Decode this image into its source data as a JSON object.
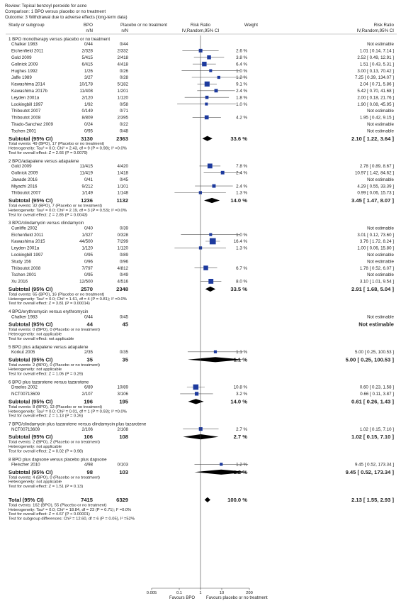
{
  "header": {
    "review": "Review: Topical benzoyl peroxide for acne",
    "comparison": "Comparison: 1 BPO versus placebo or no treatment",
    "outcome": "Outcome: 3 Withdrawal due to adverse effects (long-term data)"
  },
  "columns": {
    "study": "Study or subgroup",
    "bpo": "BPO",
    "bpo_sub": "n/N",
    "placebo": "Placebo or no treatment",
    "placebo_sub": "n/N",
    "rr": "Risk Ratio",
    "rr_sub": "IV,Random,95% CI",
    "weight": "Weight",
    "rr2": "Risk Ratio",
    "rr2_sub": "IV,Random,95% CI"
  },
  "colors": {
    "square": "#1d3a9e",
    "diamond": "#000000",
    "line": "#555555",
    "text": "#222222"
  },
  "chart_data": {
    "type": "forest",
    "axis": {
      "scale": "log",
      "ticks": [
        "0.005",
        "0.1",
        "1",
        "10",
        "200"
      ],
      "tick_values": [
        0.005,
        0.1,
        1,
        10,
        200
      ],
      "left_label": "Favours BPO",
      "right_label": "Favours placebo or no treatment"
    },
    "groups": [
      {
        "title": "1 BPO monotherapy versus placebo or no treatment",
        "studies": [
          {
            "name": "Chalker 1983",
            "bpo": "0/44",
            "ctl": "0/44",
            "weight": "",
            "ci": "Not estimable",
            "rr": null
          },
          {
            "name": "Eichenfield 2011",
            "bpo": "2/328",
            "ctl": "2/332",
            "weight": "2.6 %",
            "ci": "1.01 [ 0.14, 7.14 ]",
            "rr": 1.01,
            "lo": 0.14,
            "hi": 7.14,
            "w": 2.6
          },
          {
            "name": "Gold 2009",
            "bpo": "5/415",
            "ctl": "2/418",
            "weight": "3.8 %",
            "ci": "2.52 [ 0.49, 12.91 ]",
            "rr": 2.52,
            "lo": 0.49,
            "hi": 12.91,
            "w": 3.8
          },
          {
            "name": "Gollnick 2009",
            "bpo": "6/415",
            "ctl": "4/418",
            "weight": "6.4 %",
            "ci": "1.51 [ 0.43, 5.31 ]",
            "rr": 1.51,
            "lo": 0.43,
            "hi": 5.31,
            "w": 6.4
          },
          {
            "name": "Hughes 1992",
            "bpo": "1/26",
            "ctl": "0/26",
            "weight": "1.0 %",
            "ci": "3.00 [ 0.13, 70.42 ]",
            "rr": 3.0,
            "lo": 0.13,
            "hi": 70.42,
            "w": 1.0
          },
          {
            "name": "Jaffe 1989",
            "bpo": "3/27",
            "ctl": "0/28",
            "weight": "1.2 %",
            "ci": "7.25 [ 0.39, 134.07 ]",
            "rr": 7.25,
            "lo": 0.39,
            "hi": 134.07,
            "w": 1.2
          },
          {
            "name": "Kawashima 2014",
            "bpo": "10/178",
            "ctl": "5/182",
            "weight": "9.1 %",
            "ci": "2.04 [ 0.71, 5.86 ]",
            "rr": 2.04,
            "lo": 0.71,
            "hi": 5.86,
            "w": 9.1
          },
          {
            "name": "Kawashima 2017b",
            "bpo": "11/408",
            "ctl": "1/201",
            "weight": "2.4 %",
            "ci": "5.42 [ 0.70, 41.68 ]",
            "rr": 5.42,
            "lo": 0.7,
            "hi": 41.68,
            "w": 2.4
          },
          {
            "name": "Leyden 2001a",
            "bpo": "2/120",
            "ctl": "1/120",
            "weight": "1.8 %",
            "ci": "2.00 [ 0.18, 21.76 ]",
            "rr": 2.0,
            "lo": 0.18,
            "hi": 21.76,
            "w": 1.8
          },
          {
            "name": "Lookingbill 1997",
            "bpo": "1/92",
            "ctl": "0/58",
            "weight": "1.0 %",
            "ci": "1.90 [ 0.08, 45.95 ]",
            "rr": 1.9,
            "lo": 0.08,
            "hi": 45.95,
            "w": 1.0
          },
          {
            "name": "Thiboutot 2007",
            "bpo": "0/149",
            "ctl": "0/71",
            "weight": "",
            "ci": "Not estimable",
            "rr": null
          },
          {
            "name": "Thiboutot 2008",
            "bpo": "8/809",
            "ctl": "2/395",
            "weight": "4.2 %",
            "ci": "1.95 [ 0.42, 9.15 ]",
            "rr": 1.95,
            "lo": 0.42,
            "hi": 9.15,
            "w": 4.2
          },
          {
            "name": "Tirado-Sanchez 2009",
            "bpo": "0/24",
            "ctl": "0/22",
            "weight": "",
            "ci": "Not estimable",
            "rr": null
          },
          {
            "name": "Tschen 2001",
            "bpo": "0/95",
            "ctl": "0/48",
            "weight": "",
            "ci": "Not estimable",
            "rr": null
          }
        ],
        "subtotal": {
          "label": "Subtotal (95% CI)",
          "bpo": "3130",
          "ctl": "2363",
          "weight": "33.6 %",
          "ci": "2.10 [ 1.22, 3.64 ]",
          "rr": 2.1,
          "lo": 1.22,
          "hi": 3.64
        },
        "notes": [
          "Total events: 49 (BPO), 17 (Placebo or no treatment)",
          "Heterogeneity: Tau² = 0.0; Chi² = 2.43, df = 9 (P = 0.98); I² =0.0%",
          "Test for overall effect: Z = 2.66 (P = 0.0079)"
        ]
      },
      {
        "title": "2 BPO/adapalene versus adapalene",
        "studies": [
          {
            "name": "Gold 2009",
            "bpo": "11/415",
            "ctl": "4/420",
            "weight": "7.8 %",
            "ci": "2.78 [ 0.89, 8.67 ]",
            "rr": 2.78,
            "lo": 0.89,
            "hi": 8.67,
            "w": 7.8
          },
          {
            "name": "Gollnick 2009",
            "bpo": "11/419",
            "ctl": "1/418",
            "weight": "2.4 %",
            "ci": "10.97 [ 1.42, 84.62 ]",
            "rr": 10.97,
            "lo": 1.42,
            "hi": 84.62,
            "w": 2.4
          },
          {
            "name": "Jawade 2016",
            "bpo": "0/41",
            "ctl": "0/45",
            "weight": "",
            "ci": "Not estimable",
            "rr": null
          },
          {
            "name": "Miyachi 2016",
            "bpo": "9/212",
            "ctl": "1/101",
            "weight": "2.4 %",
            "ci": "4.29 [ 0.55, 33.39 ]",
            "rr": 4.29,
            "lo": 0.55,
            "hi": 33.39,
            "w": 2.4
          },
          {
            "name": "Thiboutot 2007",
            "bpo": "1/149",
            "ctl": "1/148",
            "weight": "1.3 %",
            "ci": "0.99 [ 0.06, 15.73 ]",
            "rr": 0.99,
            "lo": 0.06,
            "hi": 15.73,
            "w": 1.3
          }
        ],
        "subtotal": {
          "label": "Subtotal (95% CI)",
          "bpo": "1236",
          "ctl": "1132",
          "weight": "14.0 %",
          "ci": "3.45 [ 1.47, 8.07 ]",
          "rr": 3.45,
          "lo": 1.47,
          "hi": 8.07
        },
        "notes": [
          "Total events: 32 (BPO), 7 (Placebo or no treatment)",
          "Heterogeneity: Tau² = 0.0; Chi² = 2.19, df = 3 (P = 0.53); I² =0.0%",
          "Test for overall effect: Z = 2.85 (P = 0.0043)"
        ]
      },
      {
        "title": "3 BPO/clindamycin versus clindamycin",
        "studies": [
          {
            "name": "Cunliffe 2002",
            "bpo": "0/40",
            "ctl": "0/39",
            "weight": "",
            "ci": "Not estimable",
            "rr": null
          },
          {
            "name": "Eichenfield 2011",
            "bpo": "1/327",
            "ctl": "0/328",
            "weight": "1.0 %",
            "ci": "3.01 [ 0.12, 73.60 ]",
            "rr": 3.01,
            "lo": 0.12,
            "hi": 73.6,
            "w": 1.0
          },
          {
            "name": "Kawashima 2015",
            "bpo": "44/500",
            "ctl": "7/299",
            "weight": "16.4 %",
            "ci": "3.76 [ 1.72, 8.24 ]",
            "rr": 3.76,
            "lo": 1.72,
            "hi": 8.24,
            "w": 16.4
          },
          {
            "name": "Leyden 2001a",
            "bpo": "1/120",
            "ctl": "1/120",
            "weight": "1.3 %",
            "ci": "1.00 [ 0.06, 15.80 ]",
            "rr": 1.0,
            "lo": 0.06,
            "hi": 15.8,
            "w": 1.3
          },
          {
            "name": "Lookingbill 1997",
            "bpo": "0/95",
            "ctl": "0/89",
            "weight": "",
            "ci": "Not estimable",
            "rr": null
          },
          {
            "name": "Study 156",
            "bpo": "0/96",
            "ctl": "0/96",
            "weight": "",
            "ci": "Not estimable",
            "rr": null
          },
          {
            "name": "Thiboutot 2008",
            "bpo": "7/797",
            "ctl": "4/812",
            "weight": "6.7 %",
            "ci": "1.78 [ 0.52, 6.07 ]",
            "rr": 1.78,
            "lo": 0.52,
            "hi": 6.07,
            "w": 6.7
          },
          {
            "name": "Tschen 2001",
            "bpo": "0/95",
            "ctl": "0/49",
            "weight": "",
            "ci": "Not estimable",
            "rr": null
          },
          {
            "name": "Xu 2016",
            "bpo": "12/500",
            "ctl": "4/516",
            "weight": "8.0 %",
            "ci": "3.10 [ 1.01, 9.54 ]",
            "rr": 3.1,
            "lo": 1.01,
            "hi": 9.54,
            "w": 8.0
          }
        ],
        "subtotal": {
          "label": "Subtotal (95% CI)",
          "bpo": "2570",
          "ctl": "2348",
          "weight": "33.5 %",
          "ci": "2.91 [ 1.68, 5.04 ]",
          "rr": 2.91,
          "lo": 1.68,
          "hi": 5.04
        },
        "notes": [
          "Total events: 65 (BPO), 16 (Placebo or no treatment)",
          "Heterogeneity: Tau² = 0.0; Chi² = 1.61, df = 4 (P = 0.81); I² =0.0%",
          "Test for overall effect: Z = 3.81 (P = 0.00014)"
        ]
      },
      {
        "title": "4 BPO/erythromycin versus erythromycin",
        "studies": [
          {
            "name": "Chalker 1983",
            "bpo": "0/44",
            "ctl": "0/45",
            "weight": "",
            "ci": "Not estimable",
            "rr": null
          }
        ],
        "subtotal": {
          "label": "Subtotal (95% CI)",
          "bpo": "44",
          "ctl": "45",
          "weight": "",
          "ci": "Not estimable",
          "rr": null
        },
        "notes": [
          "Total events: 0 (BPO), 0 (Placebo or no treatment)",
          "Heterogeneity: not applicable",
          "Test for overall effect: not applicable"
        ]
      },
      {
        "title": "5 BPO plus adapalene versus adapalene",
        "studies": [
          {
            "name": "Korkut 2005",
            "bpo": "2/35",
            "ctl": "0/35",
            "weight": "1.1 %",
            "ci": "5.00 [ 0.25, 100.53 ]",
            "rr": 5.0,
            "lo": 0.25,
            "hi": 100.53,
            "w": 1.1
          }
        ],
        "subtotal": {
          "label": "Subtotal (95% CI)",
          "bpo": "35",
          "ctl": "35",
          "weight": "1.1 %",
          "ci": "5.00 [ 0.25, 100.53 ]",
          "rr": 5.0,
          "lo": 0.25,
          "hi": 100.53
        },
        "notes": [
          "Total events: 2 (BPO), 0 (Placebo or no treatment)",
          "Heterogeneity: not applicable",
          "Test for overall effect: Z = 1.05 (P = 0.29)"
        ]
      },
      {
        "title": "6 BPO plus tazarotene versus tazarotene",
        "studies": [
          {
            "name": "Draelos 2002",
            "bpo": "6/89",
            "ctl": "10/89",
            "weight": "10.8 %",
            "ci": "0.60 [ 0.23, 1.58 ]",
            "rr": 0.6,
            "lo": 0.23,
            "hi": 1.58,
            "w": 10.8
          },
          {
            "name": "NCT00713609",
            "bpo": "2/107",
            "ctl": "3/106",
            "weight": "3.2 %",
            "ci": "0.66 [ 0.11, 3.87 ]",
            "rr": 0.66,
            "lo": 0.11,
            "hi": 3.87,
            "w": 3.2
          }
        ],
        "subtotal": {
          "label": "Subtotal (95% CI)",
          "bpo": "196",
          "ctl": "195",
          "weight": "14.0 %",
          "ci": "0.61 [ 0.26, 1.43 ]",
          "rr": 0.61,
          "lo": 0.26,
          "hi": 1.43
        },
        "notes": [
          "Total events: 8 (BPO), 13 (Placebo or no treatment)",
          "Heterogeneity: Tau² = 0.0; Chi² = 0.01, df = 1 (P = 0.93); I² =0.0%",
          "Test for overall effect: Z = 1.13 (P = 0.26)"
        ]
      },
      {
        "title": "7 BPO/clindamycin plus tazarotene versus clindamycin plus tazarotene",
        "studies": [
          {
            "name": "NCT00713609",
            "bpo": "2/106",
            "ctl": "2/108",
            "weight": "2.7 %",
            "ci": "1.02 [ 0.15, 7.10 ]",
            "rr": 1.02,
            "lo": 0.15,
            "hi": 7.1,
            "w": 2.7
          }
        ],
        "subtotal": {
          "label": "Subtotal (95% CI)",
          "bpo": "106",
          "ctl": "108",
          "weight": "2.7 %",
          "ci": "1.02 [ 0.15, 7.10 ]",
          "rr": 1.02,
          "lo": 0.15,
          "hi": 7.1
        },
        "notes": [
          "Total events: 2 (BPO), 2 (Placebo or no treatment)",
          "Heterogeneity: not applicable",
          "Test for overall effect: Z = 0.02 (P = 0.98)"
        ]
      },
      {
        "title": "8 BPO plus dapsone versus placebo plus dapsone",
        "studies": [
          {
            "name": "Fleischer 2010",
            "bpo": "4/98",
            "ctl": "0/103",
            "weight": "1.2 %",
            "ci": "9.45 [ 0.52, 173.34 ]",
            "rr": 9.45,
            "lo": 0.52,
            "hi": 173.34,
            "w": 1.2
          }
        ],
        "subtotal": {
          "label": "Subtotal (95% CI)",
          "bpo": "98",
          "ctl": "103",
          "weight": "1.2 %",
          "ci": "9.45 [ 0.52, 173.34 ]",
          "rr": 9.45,
          "lo": 0.52,
          "hi": 173.34
        },
        "notes": [
          "Total events: 4 (BPO), 0 (Placebo or no treatment)",
          "Heterogeneity: not applicable",
          "Test for overall effect: Z = 1.51 (P = 0.13)"
        ]
      }
    ],
    "total": {
      "label": "Total (95% CI)",
      "bpo": "7415",
      "ctl": "6329",
      "weight": "100.0 %",
      "ci": "2.13 [ 1.55, 2.93 ]",
      "rr": 2.13,
      "lo": 1.55,
      "hi": 2.93
    },
    "total_notes": [
      "Total events: 162 (BPO), 55 (Placebo or no treatment)",
      "Heterogeneity: Tau² = 0.0; Chi² = 18.84, df = 23 (P = 0.71); I² =0.0%",
      "Test for overall effect: Z = 4.67 (P < 0.00001)",
      "Test for subgroup differences: Chi² = 12.60, df = 6 (P = 0.05), I² =52%"
    ]
  }
}
